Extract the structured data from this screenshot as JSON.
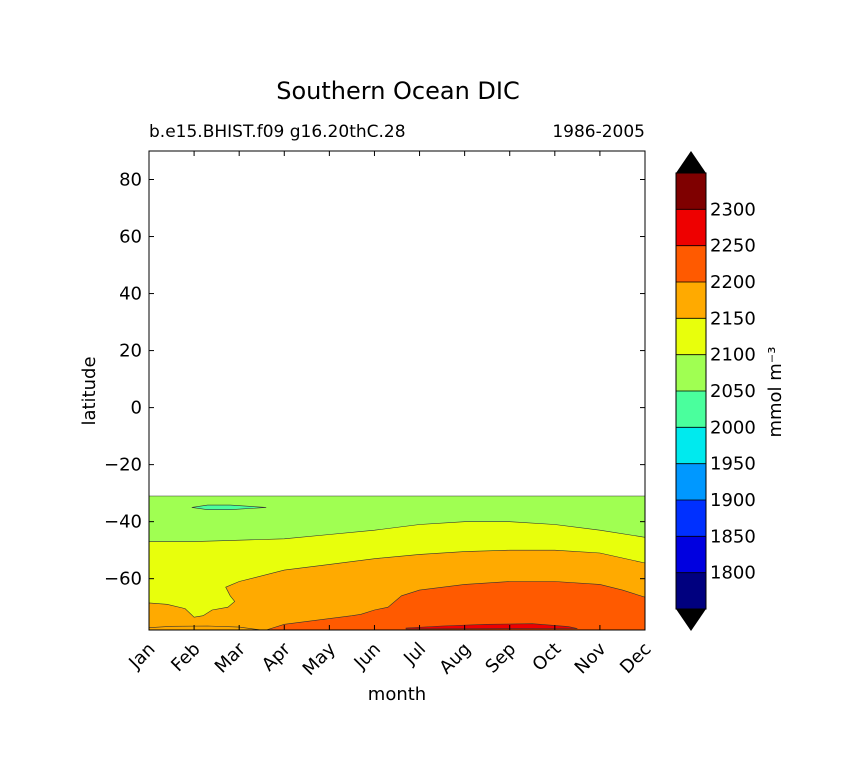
{
  "chart_data": {
    "type": "contour",
    "title": "Southern Ocean DIC",
    "subtitle_left": "b.e15.BHIST.f09 g16.20thC.28",
    "subtitle_right": "1986-2005",
    "xlabel": "month",
    "ylabel": "latitude",
    "x_categories": [
      "Jan",
      "Feb",
      "Mar",
      "Apr",
      "May",
      "Jun",
      "Jul",
      "Aug",
      "Sep",
      "Oct",
      "Nov",
      "Dec"
    ],
    "ylim": [
      -78,
      90
    ],
    "y_ticks": [
      80,
      60,
      40,
      20,
      0,
      -20,
      -40,
      -60
    ],
    "y_tick_labels": [
      "80",
      "60",
      "40",
      "20",
      "0",
      "−20",
      "−40",
      "−60"
    ],
    "data_lat_max": -31,
    "colorbar": {
      "label": "mmol m⁻³",
      "ticks": [
        "1800",
        "1850",
        "1900",
        "1950",
        "2000",
        "2050",
        "2100",
        "2150",
        "2200",
        "2250",
        "2300"
      ],
      "levels": [
        {
          "lo": 1750,
          "hi": 1800,
          "color": "#00007f"
        },
        {
          "lo": 1800,
          "hi": 1850,
          "color": "#0000e0"
        },
        {
          "lo": 1850,
          "hi": 1900,
          "color": "#0030ff"
        },
        {
          "lo": 1900,
          "hi": 1950,
          "color": "#0098ff"
        },
        {
          "lo": 1950,
          "hi": 2000,
          "color": "#00eaee"
        },
        {
          "lo": 2000,
          "hi": 2050,
          "color": "#4aff9d"
        },
        {
          "lo": 2050,
          "hi": 2100,
          "color": "#a0ff52"
        },
        {
          "lo": 2100,
          "hi": 2150,
          "color": "#e8ff0c"
        },
        {
          "lo": 2150,
          "hi": 2200,
          "color": "#ffaa00"
        },
        {
          "lo": 2200,
          "hi": 2250,
          "color": "#ff5a00"
        },
        {
          "lo": 2250,
          "hi": 2300,
          "color": "#ee0000"
        },
        {
          "lo": 2300,
          "hi": 2350,
          "color": "#7f0000"
        }
      ],
      "extend_min_color": "#000000",
      "extend_max_color": "#000000"
    },
    "contours": [
      {
        "name": "2050-2100",
        "color": "#a0ff52",
        "boundary": [
          [
            0,
            -31
          ],
          [
            11,
            -31
          ],
          [
            11,
            -78
          ],
          [
            0,
            -78
          ]
        ]
      },
      {
        "name": "2100-2150",
        "color": "#e8ff0c",
        "boundary": [
          [
            0,
            -47
          ],
          [
            1,
            -47
          ],
          [
            2,
            -46.5
          ],
          [
            3,
            -46
          ],
          [
            4,
            -44.5
          ],
          [
            5,
            -43
          ],
          [
            6,
            -41
          ],
          [
            7,
            -40
          ],
          [
            8,
            -40
          ],
          [
            9,
            -41
          ],
          [
            10,
            -43
          ],
          [
            11,
            -45.5
          ],
          [
            11,
            -78
          ],
          [
            0,
            -78
          ]
        ]
      },
      {
        "name": "2150-2200",
        "color": "#ffaa00",
        "boundary": [
          [
            0,
            -68.5
          ],
          [
            0.4,
            -69
          ],
          [
            0.8,
            -70.5
          ],
          [
            1.0,
            -73.5
          ],
          [
            1.2,
            -73
          ],
          [
            1.4,
            -71
          ],
          [
            1.75,
            -70
          ],
          [
            1.9,
            -68
          ],
          [
            1.8,
            -66
          ],
          [
            1.7,
            -63
          ],
          [
            2,
            -61
          ],
          [
            3,
            -57
          ],
          [
            4,
            -55
          ],
          [
            5,
            -53
          ],
          [
            6,
            -51.5
          ],
          [
            7,
            -50.5
          ],
          [
            8,
            -50
          ],
          [
            9,
            -50
          ],
          [
            10,
            -51
          ],
          [
            11,
            -54.5
          ],
          [
            11,
            -78
          ],
          [
            0,
            -78
          ]
        ]
      },
      {
        "name": "2200-2250",
        "color": "#ff5a00",
        "boundary": [
          [
            2.6,
            -78
          ],
          [
            3,
            -76
          ],
          [
            4,
            -74
          ],
          [
            4.5,
            -73
          ],
          [
            4.7,
            -72.5
          ],
          [
            5,
            -71
          ],
          [
            5.3,
            -70
          ],
          [
            5.6,
            -66
          ],
          [
            6,
            -64
          ],
          [
            7,
            -62
          ],
          [
            8,
            -61
          ],
          [
            9,
            -61
          ],
          [
            10,
            -62
          ],
          [
            10.5,
            -64
          ],
          [
            11,
            -66.5
          ],
          [
            11,
            -78
          ]
        ]
      },
      {
        "name": "2250-2300",
        "color": "#ee0000",
        "boundary": [
          [
            5.7,
            -77.3
          ],
          [
            6.5,
            -76.6
          ],
          [
            7.5,
            -76
          ],
          [
            8.5,
            -75.8
          ],
          [
            9.3,
            -76.8
          ],
          [
            9.5,
            -77.5
          ],
          [
            5.7,
            -77.6
          ]
        ]
      },
      {
        "name": "2000-2050",
        "color": "#4aff9d",
        "boundary": [
          [
            0.95,
            -35
          ],
          [
            1.3,
            -34.2
          ],
          [
            1.8,
            -34.2
          ],
          [
            2.6,
            -35
          ],
          [
            1.8,
            -35.8
          ],
          [
            1.3,
            -35.8
          ]
        ]
      },
      {
        "name": "2150-2200-sliver",
        "color": "#ffaa00",
        "boundary": [
          [
            0,
            -77.2
          ],
          [
            0.5,
            -76.7
          ],
          [
            1.3,
            -76.6
          ],
          [
            2,
            -77
          ],
          [
            2.5,
            -78
          ],
          [
            0,
            -78
          ]
        ]
      }
    ]
  }
}
